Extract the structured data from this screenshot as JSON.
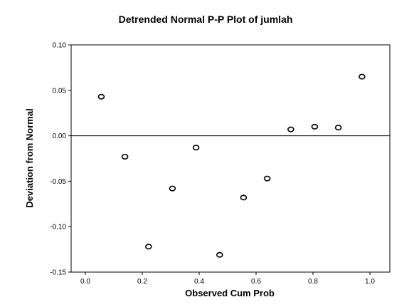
{
  "chart_data": {
    "type": "scatter",
    "title": "Detrended Normal P-P Plot of jumlah",
    "xlabel": "Observed Cum Prob",
    "ylabel": "Deviation from Normal",
    "xlim": [
      -0.05,
      1.07
    ],
    "ylim": [
      -0.15,
      0.1
    ],
    "x_ticks": [
      0.0,
      0.2,
      0.4,
      0.6,
      0.8,
      1.0
    ],
    "x_tick_labels": [
      "0.0",
      "0.2",
      "0.4",
      "0.6",
      "0.8",
      "1.0"
    ],
    "y_ticks": [
      -0.15,
      -0.1,
      -0.05,
      0.0,
      0.05,
      0.1
    ],
    "y_tick_labels": [
      "-0.15",
      "-0.10",
      "-0.05",
      "0.00",
      "0.05",
      "0.10"
    ],
    "reference_line_y": 0.0,
    "grid": false,
    "points": [
      {
        "x": 0.056,
        "y": 0.043
      },
      {
        "x": 0.139,
        "y": -0.023
      },
      {
        "x": 0.222,
        "y": -0.122
      },
      {
        "x": 0.306,
        "y": -0.058
      },
      {
        "x": 0.389,
        "y": -0.013
      },
      {
        "x": 0.472,
        "y": -0.131
      },
      {
        "x": 0.556,
        "y": -0.068
      },
      {
        "x": 0.639,
        "y": -0.047
      },
      {
        "x": 0.722,
        "y": 0.007
      },
      {
        "x": 0.806,
        "y": 0.01
      },
      {
        "x": 0.889,
        "y": 0.009
      },
      {
        "x": 0.972,
        "y": 0.065
      }
    ]
  }
}
